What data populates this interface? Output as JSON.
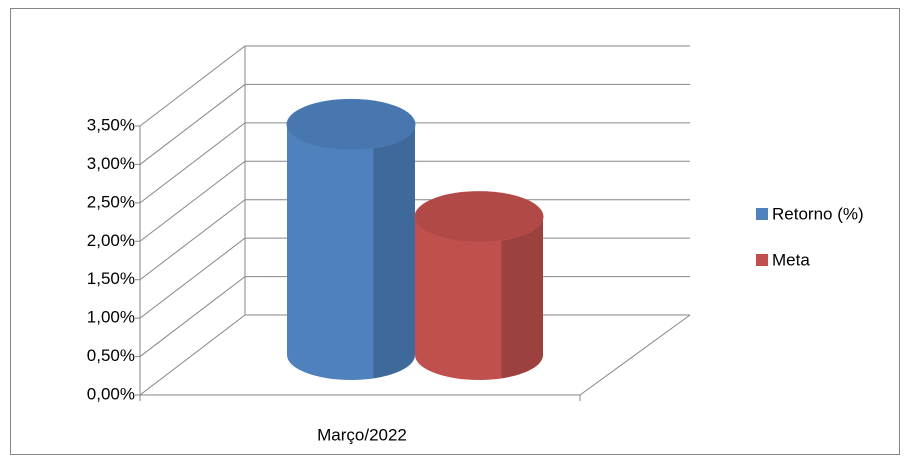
{
  "chart_data": {
    "type": "bar",
    "style": "3d-cylinder",
    "categories": [
      "Março/2022"
    ],
    "series": [
      {
        "name": "Retorno (%)",
        "color": "#4f81bd",
        "values": [
          3.0
        ]
      },
      {
        "name": "Meta",
        "color": "#c0504d",
        "values": [
          1.8
        ]
      }
    ],
    "ylim": [
      0,
      3.5
    ],
    "yticks": [
      {
        "value": 0,
        "label": "0,00%"
      },
      {
        "value": 0.5,
        "label": "0,50%"
      },
      {
        "value": 1,
        "label": "1,00%"
      },
      {
        "value": 1.5,
        "label": "1,50%"
      },
      {
        "value": 2,
        "label": "2,00%"
      },
      {
        "value": 2.5,
        "label": "2,50%"
      },
      {
        "value": 3,
        "label": "3,00%"
      },
      {
        "value": 3.5,
        "label": "3,50%"
      }
    ],
    "grid": true,
    "legend": "right"
  }
}
